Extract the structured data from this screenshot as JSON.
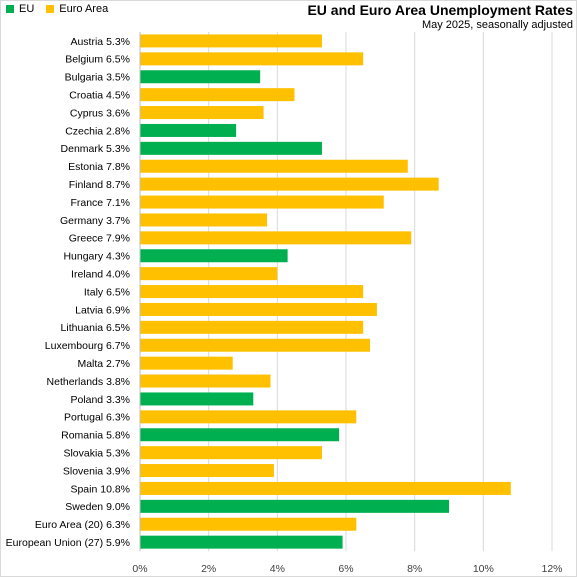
{
  "chart_data": {
    "type": "bar",
    "orientation": "horizontal",
    "title": "EU and Euro Area Unemployment Rates",
    "subtitle": "May 2025, seasonally adjusted",
    "legend": {
      "placement": "top-left",
      "entries": [
        {
          "name": "EU",
          "color": "#00b050"
        },
        {
          "name": "Euro Area",
          "color": "#ffc000"
        }
      ]
    },
    "xlim": [
      0,
      12
    ],
    "xticks": [
      "0%",
      "2%",
      "4%",
      "6%",
      "8%",
      "10%",
      "12%"
    ],
    "grid": "vertical",
    "categories": [
      {
        "label": "Austria 5.3%",
        "value": 5.3,
        "group": "Euro Area"
      },
      {
        "label": "Belgium 6.5%",
        "value": 6.5,
        "group": "Euro Area"
      },
      {
        "label": "Bulgaria 3.5%",
        "value": 3.5,
        "group": "EU"
      },
      {
        "label": "Croatia 4.5%",
        "value": 4.5,
        "group": "Euro Area"
      },
      {
        "label": "Cyprus 3.6%",
        "value": 3.6,
        "group": "Euro Area"
      },
      {
        "label": "Czechia 2.8%",
        "value": 2.8,
        "group": "EU"
      },
      {
        "label": "Denmark 5.3%",
        "value": 5.3,
        "group": "EU"
      },
      {
        "label": "Estonia 7.8%",
        "value": 7.8,
        "group": "Euro Area"
      },
      {
        "label": "Finland 8.7%",
        "value": 8.7,
        "group": "Euro Area"
      },
      {
        "label": "France 7.1%",
        "value": 7.1,
        "group": "Euro Area"
      },
      {
        "label": "Germany 3.7%",
        "value": 3.7,
        "group": "Euro Area"
      },
      {
        "label": "Greece 7.9%",
        "value": 7.9,
        "group": "Euro Area"
      },
      {
        "label": "Hungary 4.3%",
        "value": 4.3,
        "group": "EU"
      },
      {
        "label": "Ireland 4.0%",
        "value": 4.0,
        "group": "Euro Area"
      },
      {
        "label": "Italy 6.5%",
        "value": 6.5,
        "group": "Euro Area"
      },
      {
        "label": "Latvia 6.9%",
        "value": 6.9,
        "group": "Euro Area"
      },
      {
        "label": "Lithuania 6.5%",
        "value": 6.5,
        "group": "Euro Area"
      },
      {
        "label": "Luxembourg 6.7%",
        "value": 6.7,
        "group": "Euro Area"
      },
      {
        "label": "Malta 2.7%",
        "value": 2.7,
        "group": "Euro Area"
      },
      {
        "label": "Netherlands 3.8%",
        "value": 3.8,
        "group": "Euro Area"
      },
      {
        "label": "Poland 3.3%",
        "value": 3.3,
        "group": "EU"
      },
      {
        "label": "Portugal 6.3%",
        "value": 6.3,
        "group": "Euro Area"
      },
      {
        "label": "Romania 5.8%",
        "value": 5.8,
        "group": "EU"
      },
      {
        "label": "Slovakia 5.3%",
        "value": 5.3,
        "group": "Euro Area"
      },
      {
        "label": "Slovenia 3.9%",
        "value": 3.9,
        "group": "Euro Area"
      },
      {
        "label": "Spain 10.8%",
        "value": 10.8,
        "group": "Euro Area"
      },
      {
        "label": "Sweden 9.0%",
        "value": 9.0,
        "group": "EU"
      },
      {
        "label": "Euro Area (20) 6.3%",
        "value": 6.3,
        "group": "Euro Area"
      },
      {
        "label": "European Union (27) 5.9%",
        "value": 5.9,
        "group": "EU"
      }
    ]
  }
}
